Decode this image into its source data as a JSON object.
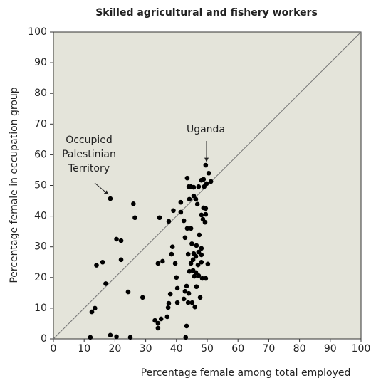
{
  "chart_data": {
    "type": "scatter",
    "title": "Skilled agricultural and fishery workers",
    "x_label": "Percentage female among total employed",
    "y_label": "Percentage female in occupation group",
    "color": "#000000",
    "background": "#e4e4da",
    "xlim": [
      0,
      100
    ],
    "ylim": [
      0,
      100
    ],
    "xticks": [
      0,
      10,
      20,
      30,
      40,
      50,
      60,
      70,
      80,
      90,
      100
    ],
    "yticks": [
      0,
      10,
      20,
      30,
      40,
      50,
      60,
      70,
      80,
      90,
      100
    ],
    "annotations": [
      [
        "Occupied",
        "Palestinian",
        "Territory"
      ],
      [
        "Uganda"
      ]
    ],
    "x": [
      12,
      18.5,
      49.5,
      26,
      26.5,
      12.5,
      13.5,
      14,
      16,
      17,
      22,
      20.5,
      22,
      18.5,
      20.5,
      24.3,
      29,
      25,
      34.5,
      37.5,
      39,
      34,
      35.5,
      33,
      34,
      34,
      35,
      37,
      37.3,
      37.5,
      38,
      38.7,
      38.4,
      39.6,
      40,
      40.3,
      40.3,
      41.4,
      41.4,
      42.4,
      42.4,
      42.8,
      42.8,
      43.5,
      43.3,
      43,
      43.5,
      44,
      44.2,
      44.7,
      45.6,
      45.6,
      46.3,
      46.8,
      47.2,
      48.1,
      48.8,
      49,
      49.8,
      50.5,
      51.2,
      48.8,
      49.5,
      49.5,
      48.1,
      48.6,
      49.3,
      44.7,
      47.4,
      45,
      46.5,
      48.1,
      43.8,
      45.6,
      46.3,
      47.2,
      48.1,
      45.4,
      44.7,
      47,
      48.1,
      50.2,
      44.2,
      45.4,
      46.3,
      47.2,
      48.4,
      49.5,
      45.8,
      43.3,
      46.5,
      47.7,
      44,
      45.1,
      43.8,
      46
    ],
    "y": [
      0.5,
      45.7,
      56.6,
      44,
      39.5,
      8.8,
      10,
      24,
      25,
      18,
      32,
      32.5,
      25.8,
      1.2,
      0.7,
      15.3,
      13.5,
      0.5,
      39.5,
      38.3,
      41.8,
      24.6,
      25.3,
      6,
      5.1,
      3.5,
      6.5,
      7.2,
      10.2,
      11.6,
      14.6,
      30,
      27.6,
      24.6,
      20,
      16.5,
      11.8,
      41.3,
      44.5,
      38.5,
      13,
      15.5,
      33,
      36,
      4.2,
      0.5,
      52.4,
      49.6,
      45.5,
      49.6,
      49.4,
      46.6,
      45.5,
      43.9,
      49.6,
      51.7,
      52,
      49.6,
      50.6,
      54,
      51.3,
      42.7,
      42.5,
      40.6,
      40.4,
      39,
      38,
      36,
      33.9,
      31,
      30.4,
      29.5,
      27.6,
      27.8,
      26.9,
      28.3,
      27.4,
      25.8,
      24.6,
      24.1,
      25,
      24.4,
      22,
      22.3,
      21.6,
      20.6,
      19.7,
      19.7,
      20.4,
      17.2,
      17,
      13.5,
      14.8,
      11.8,
      11.8,
      10.4
    ]
  }
}
